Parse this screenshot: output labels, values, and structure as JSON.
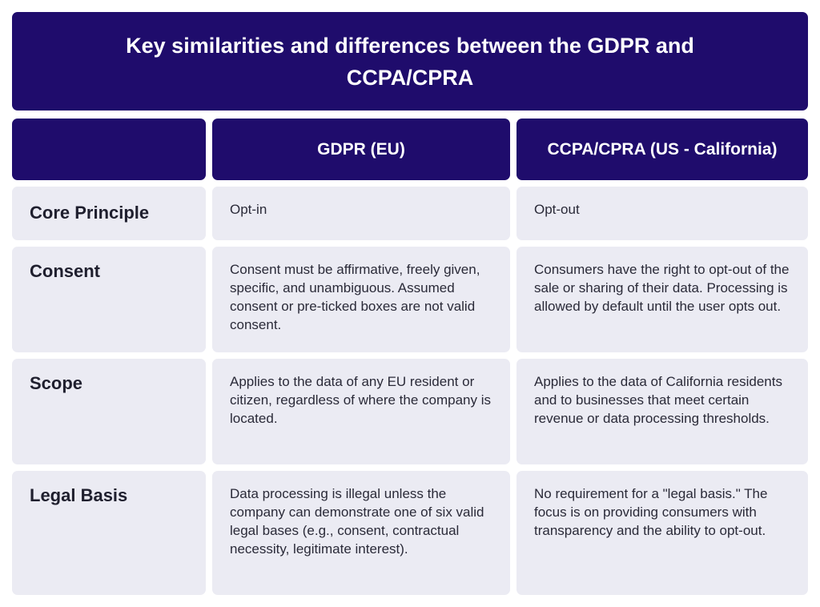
{
  "title": "Key similarities and differences between the GDPR and CCPA/CPRA",
  "table": {
    "header": [
      "GDPR (EU)",
      "CCPA/CPRA (US - California)"
    ],
    "rows": [
      [
        "Core Principle",
        "Opt-in",
        "Opt-out"
      ],
      [
        "Consent",
        "Consent must be affirmative, freely given, specific, and unambiguous. Assumed consent or pre-ticked boxes are not valid consent.",
        "Consumers have the right to opt-out of the sale or sharing of their data. Processing is allowed by default until the user opts out."
      ],
      [
        "Scope",
        "Applies to the data of any EU resident or citizen, regardless of where the company is located.",
        "Applies to the data of California residents and to businesses that meet certain revenue or data processing thresholds."
      ],
      [
        "Legal Basis",
        "Data processing is illegal unless the company can demonstrate one of six valid legal bases (e.g., consent, contractual necessity, legitimate interest).",
        "No requirement for a \"legal basis.\" The focus is on providing consumers with transparency and the ability to opt-out."
      ]
    ]
  }
}
